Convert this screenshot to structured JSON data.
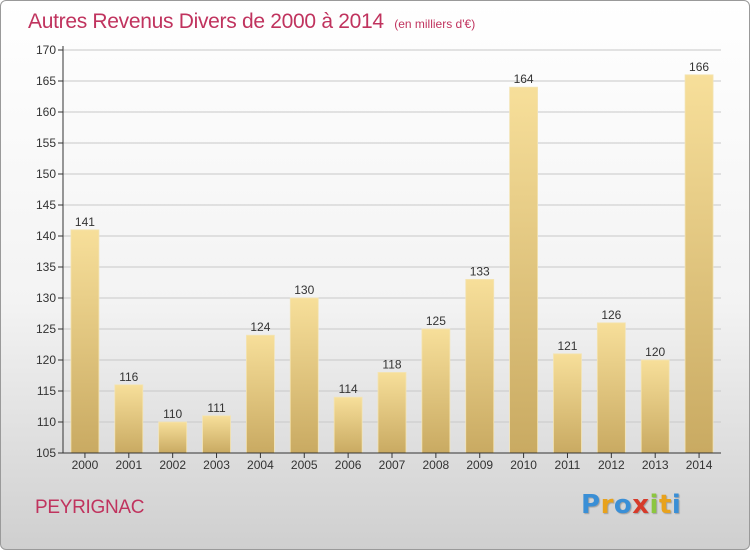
{
  "title": "Autres Revenus Divers de 2000 à 2014",
  "unit_note": "(en milliers d'€)",
  "commune": "PEYRIGNAC",
  "logo": {
    "letters": [
      "P",
      "r",
      "o",
      "x",
      "i",
      "t",
      "i"
    ],
    "colors": [
      "#3a8fd6",
      "#e8a21c",
      "#3a8fd6",
      "#d63a2a",
      "#8cc63f",
      "#e8a21c",
      "#3a8fd6"
    ]
  },
  "colors": {
    "title": "#c0335e",
    "bar_light": "#f7df9a",
    "bar_dark": "#c9aa62",
    "grid": "#c8c8c8",
    "axis": "#333333"
  },
  "chart_data": {
    "type": "bar",
    "title": "Autres Revenus Divers de 2000 à 2014",
    "subtitle": "(en milliers d'€)",
    "xlabel": "",
    "ylabel": "",
    "categories": [
      "2000",
      "2001",
      "2002",
      "2003",
      "2004",
      "2005",
      "2006",
      "2007",
      "2008",
      "2009",
      "2010",
      "2011",
      "2012",
      "2013",
      "2014"
    ],
    "values": [
      141,
      116,
      110,
      111,
      124,
      130,
      114,
      118,
      125,
      133,
      164,
      121,
      126,
      120,
      166
    ],
    "ylim": [
      105,
      170
    ],
    "yticks": [
      105,
      110,
      115,
      120,
      125,
      130,
      135,
      140,
      145,
      150,
      155,
      160,
      165,
      170
    ],
    "grid": true,
    "legend": "none",
    "data_labels": true
  }
}
